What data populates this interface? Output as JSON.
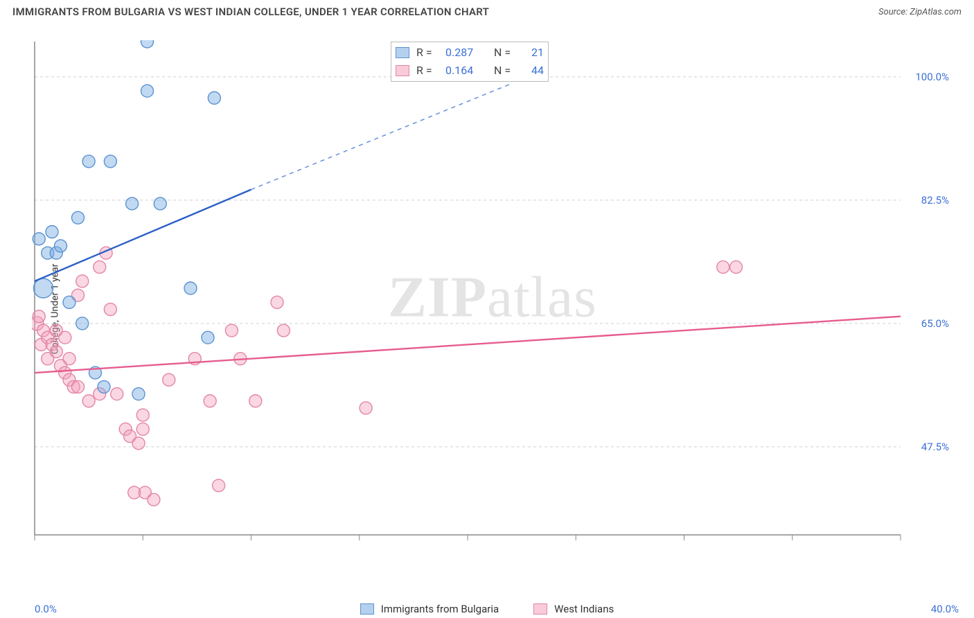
{
  "title": "IMMIGRANTS FROM BULGARIA VS WEST INDIAN COLLEGE, UNDER 1 YEAR CORRELATION CHART",
  "source": "Source: ZipAtlas.com",
  "y_axis_label": "College, Under 1 year",
  "watermark_bold": "ZIP",
  "watermark_rest": "atlas",
  "chart": {
    "type": "scatter",
    "xlim": [
      0,
      40
    ],
    "ylim": [
      35,
      105
    ],
    "x_tick_start": "0.0%",
    "x_tick_end": "40.0%",
    "x_minor_step": 5,
    "y_ticks": [
      47.5,
      65.0,
      82.5,
      100.0
    ],
    "y_tick_labels": [
      "47.5%",
      "65.0%",
      "82.5%",
      "100.0%"
    ],
    "background_color": "#ffffff",
    "grid_color": "#d0d0d0",
    "axis_color": "#888888",
    "colors": {
      "blue_fill": "rgba(120,170,226,0.45)",
      "blue_stroke": "#5a92cf",
      "blue_trend": "#2a5fc7",
      "pink_fill": "rgba(244,160,185,0.42)",
      "pink_stroke": "#e385a5",
      "pink_trend": "#e65c8f",
      "tick_label": "#3b6fd6"
    },
    "point_radius": 9,
    "trend_width": 2.4,
    "series": [
      {
        "name": "Immigrants from Bulgaria",
        "color_key": "blue",
        "stats": {
          "R": 0.287,
          "N": 21
        },
        "trend": {
          "x1": 0,
          "y1": 71,
          "x2": 10,
          "y2": 84,
          "dash_to_x": 22,
          "dash_to_y": 99
        },
        "points": [
          {
            "x": 0.2,
            "y": 77,
            "r": 9
          },
          {
            "x": 0.4,
            "y": 70,
            "r": 14
          },
          {
            "x": 0.6,
            "y": 75,
            "r": 9
          },
          {
            "x": 0.8,
            "y": 78,
            "r": 9
          },
          {
            "x": 1.0,
            "y": 75,
            "r": 9
          },
          {
            "x": 1.2,
            "y": 76,
            "r": 9
          },
          {
            "x": 1.6,
            "y": 68,
            "r": 9
          },
          {
            "x": 2.0,
            "y": 80,
            "r": 9
          },
          {
            "x": 2.2,
            "y": 65,
            "r": 9
          },
          {
            "x": 2.5,
            "y": 88,
            "r": 9
          },
          {
            "x": 2.8,
            "y": 58,
            "r": 9
          },
          {
            "x": 3.2,
            "y": 56,
            "r": 9
          },
          {
            "x": 3.5,
            "y": 88,
            "r": 9
          },
          {
            "x": 4.5,
            "y": 82,
            "r": 9
          },
          {
            "x": 4.8,
            "y": 55,
            "r": 9
          },
          {
            "x": 5.2,
            "y": 98,
            "r": 9
          },
          {
            "x": 5.2,
            "y": 105,
            "r": 9
          },
          {
            "x": 5.8,
            "y": 82,
            "r": 9
          },
          {
            "x": 7.2,
            "y": 70,
            "r": 9
          },
          {
            "x": 8.0,
            "y": 63,
            "r": 9
          },
          {
            "x": 8.3,
            "y": 97,
            "r": 9
          }
        ]
      },
      {
        "name": "West Indians",
        "color_key": "pink",
        "stats": {
          "R": 0.164,
          "N": 44
        },
        "trend": {
          "x1": 0,
          "y1": 58,
          "x2": 40,
          "y2": 66
        },
        "points": [
          {
            "x": 0.1,
            "y": 65,
            "r": 10
          },
          {
            "x": 0.2,
            "y": 66,
            "r": 9
          },
          {
            "x": 0.3,
            "y": 62,
            "r": 9
          },
          {
            "x": 0.4,
            "y": 64,
            "r": 9
          },
          {
            "x": 0.6,
            "y": 63,
            "r": 9
          },
          {
            "x": 0.6,
            "y": 60,
            "r": 9
          },
          {
            "x": 0.8,
            "y": 62,
            "r": 9
          },
          {
            "x": 1.0,
            "y": 64,
            "r": 9
          },
          {
            "x": 1.0,
            "y": 61,
            "r": 9
          },
          {
            "x": 1.2,
            "y": 59,
            "r": 9
          },
          {
            "x": 1.4,
            "y": 63,
            "r": 9
          },
          {
            "x": 1.4,
            "y": 58,
            "r": 9
          },
          {
            "x": 1.6,
            "y": 60,
            "r": 9
          },
          {
            "x": 1.6,
            "y": 57,
            "r": 9
          },
          {
            "x": 1.8,
            "y": 56,
            "r": 9
          },
          {
            "x": 2.0,
            "y": 69,
            "r": 9
          },
          {
            "x": 2.0,
            "y": 56,
            "r": 9
          },
          {
            "x": 2.2,
            "y": 71,
            "r": 9
          },
          {
            "x": 2.5,
            "y": 54,
            "r": 9
          },
          {
            "x": 3.0,
            "y": 73,
            "r": 9
          },
          {
            "x": 3.0,
            "y": 55,
            "r": 9
          },
          {
            "x": 3.3,
            "y": 75,
            "r": 9
          },
          {
            "x": 3.5,
            "y": 67,
            "r": 9
          },
          {
            "x": 3.8,
            "y": 55,
            "r": 9
          },
          {
            "x": 4.2,
            "y": 50,
            "r": 9
          },
          {
            "x": 4.4,
            "y": 49,
            "r": 9
          },
          {
            "x": 4.6,
            "y": 41,
            "r": 9
          },
          {
            "x": 4.8,
            "y": 48,
            "r": 9
          },
          {
            "x": 5.0,
            "y": 52,
            "r": 9
          },
          {
            "x": 5.0,
            "y": 50,
            "r": 9
          },
          {
            "x": 5.1,
            "y": 41,
            "r": 9
          },
          {
            "x": 5.5,
            "y": 40,
            "r": 9
          },
          {
            "x": 6.2,
            "y": 57,
            "r": 9
          },
          {
            "x": 7.4,
            "y": 60,
            "r": 9
          },
          {
            "x": 8.1,
            "y": 54,
            "r": 9
          },
          {
            "x": 8.5,
            "y": 42,
            "r": 9
          },
          {
            "x": 9.1,
            "y": 64,
            "r": 9
          },
          {
            "x": 9.5,
            "y": 60,
            "r": 9
          },
          {
            "x": 10.2,
            "y": 54,
            "r": 9
          },
          {
            "x": 11.2,
            "y": 68,
            "r": 9
          },
          {
            "x": 11.5,
            "y": 64,
            "r": 9
          },
          {
            "x": 15.3,
            "y": 53,
            "r": 9
          },
          {
            "x": 31.8,
            "y": 73,
            "r": 9
          },
          {
            "x": 32.4,
            "y": 73,
            "r": 9
          }
        ]
      }
    ]
  },
  "legend_top_labels": {
    "R": "R =",
    "N": "N ="
  },
  "legend_bottom": {
    "blue": "Immigrants from Bulgaria",
    "pink": "West Indians"
  }
}
